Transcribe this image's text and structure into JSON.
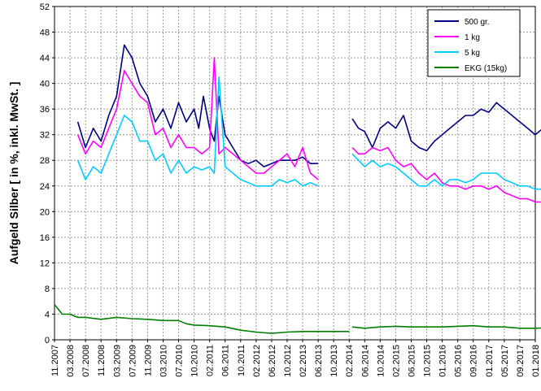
{
  "chart_data": {
    "type": "line",
    "ylabel": "Aufgeld Silber [ in %, inkl. MwSt. ]",
    "xlabel": "",
    "ylim": [
      0,
      52
    ],
    "y_ticks": [
      0,
      4,
      8,
      12,
      16,
      20,
      24,
      28,
      32,
      36,
      40,
      44,
      48,
      52
    ],
    "x_ticks": [
      "11.2007",
      "03.2008",
      "07.2008",
      "11.2008",
      "03.2009",
      "07.2009",
      "11.2009",
      "03.2010",
      "07.2010",
      "10.2010",
      "02.2011",
      "06.2011",
      "10.2011",
      "02.2012",
      "06.2012",
      "10.2012",
      "02.2013",
      "06.2013",
      "10.2013",
      "02.2014",
      "06.2014",
      "10.2014",
      "02.2015",
      "06.2015",
      "10.2015",
      "01.2016",
      "05.2016",
      "09.2016",
      "01.2017",
      "05.2017",
      "09.2017",
      "01.2018"
    ],
    "grid": true,
    "legend_position": "top-right",
    "series": [
      {
        "name": "500 gr.",
        "color": "#000080",
        "segments": [
          [
            [
              1.5,
              34
            ],
            [
              2,
              30
            ],
            [
              2.5,
              33
            ],
            [
              3,
              31
            ],
            [
              3.5,
              35
            ],
            [
              4,
              38
            ],
            [
              4.5,
              46
            ],
            [
              5,
              44
            ],
            [
              5.5,
              40
            ],
            [
              6,
              38
            ],
            [
              6.5,
              34
            ],
            [
              7,
              36
            ],
            [
              7.5,
              33
            ],
            [
              8,
              37
            ],
            [
              8.5,
              34
            ],
            [
              9,
              36
            ],
            [
              9.3,
              33
            ],
            [
              9.6,
              38
            ],
            [
              10,
              33
            ],
            [
              10.3,
              31
            ],
            [
              10.6,
              38
            ],
            [
              11,
              32
            ],
            [
              11.5,
              30
            ],
            [
              12,
              28
            ],
            [
              12.5,
              27.5
            ],
            [
              13,
              28
            ],
            [
              13.5,
              27
            ],
            [
              14,
              27.5
            ],
            [
              14.5,
              28
            ],
            [
              15,
              28
            ],
            [
              15.5,
              28
            ],
            [
              16,
              28.5
            ],
            [
              16.5,
              27.5
            ],
            [
              17,
              27.5
            ]
          ],
          [
            [
              19.2,
              34.5
            ],
            [
              19.6,
              33
            ],
            [
              20,
              32.5
            ],
            [
              20.5,
              30
            ],
            [
              21,
              33
            ],
            [
              21.5,
              34
            ],
            [
              22,
              33
            ],
            [
              22.5,
              35
            ],
            [
              23,
              31
            ],
            [
              23.5,
              30
            ],
            [
              24,
              29.5
            ],
            [
              24.5,
              31
            ],
            [
              25,
              32
            ],
            [
              25.5,
              33
            ],
            [
              26,
              34
            ],
            [
              26.5,
              35
            ],
            [
              27,
              35
            ],
            [
              27.5,
              36
            ],
            [
              28,
              35.5
            ],
            [
              28.5,
              37
            ],
            [
              29,
              36
            ],
            [
              29.5,
              35
            ],
            [
              30,
              34
            ],
            [
              30.5,
              33
            ],
            [
              31,
              32
            ],
            [
              31.5,
              33
            ],
            [
              32,
              33
            ],
            [
              32.5,
              32
            ],
            [
              33,
              33
            ],
            [
              33.5,
              32
            ],
            [
              34,
              33.5
            ]
          ]
        ]
      },
      {
        "name": "1 kg",
        "color": "#ff00ff",
        "segments": [
          [
            [
              1.5,
              32
            ],
            [
              2,
              29
            ],
            [
              2.5,
              31
            ],
            [
              3,
              30
            ],
            [
              3.5,
              33
            ],
            [
              4,
              36
            ],
            [
              4.5,
              42
            ],
            [
              5,
              40
            ],
            [
              5.5,
              38
            ],
            [
              6,
              37
            ],
            [
              6.5,
              32
            ],
            [
              7,
              33
            ],
            [
              7.5,
              30
            ],
            [
              8,
              32
            ],
            [
              8.5,
              30
            ],
            [
              9,
              30
            ],
            [
              9.5,
              29
            ],
            [
              10,
              30
            ],
            [
              10.3,
              44
            ],
            [
              10.6,
              29
            ],
            [
              11,
              30
            ],
            [
              11.5,
              29
            ],
            [
              12,
              28
            ],
            [
              12.5,
              27
            ],
            [
              13,
              26
            ],
            [
              13.5,
              26
            ],
            [
              14,
              27
            ],
            [
              14.5,
              28
            ],
            [
              15,
              29
            ],
            [
              15.5,
              27
            ],
            [
              16,
              30
            ],
            [
              16.5,
              26
            ],
            [
              17,
              25
            ]
          ],
          [
            [
              19.2,
              30
            ],
            [
              19.6,
              29
            ],
            [
              20,
              29
            ],
            [
              20.5,
              30
            ],
            [
              21,
              29.5
            ],
            [
              21.5,
              30
            ],
            [
              22,
              28
            ],
            [
              22.5,
              27
            ],
            [
              23,
              27.5
            ],
            [
              23.5,
              26
            ],
            [
              24,
              25
            ],
            [
              24.5,
              26
            ],
            [
              25,
              24.5
            ],
            [
              25.5,
              24
            ],
            [
              26,
              24
            ],
            [
              26.5,
              23.5
            ],
            [
              27,
              24
            ],
            [
              27.5,
              24
            ],
            [
              28,
              23.5
            ],
            [
              28.5,
              24
            ],
            [
              29,
              23
            ],
            [
              29.5,
              22.5
            ],
            [
              30,
              22
            ],
            [
              30.5,
              22
            ],
            [
              31,
              21.5
            ],
            [
              31.5,
              21.5
            ],
            [
              32,
              21
            ],
            [
              32.5,
              21.5
            ],
            [
              33,
              21.5
            ],
            [
              33.5,
              21
            ],
            [
              34,
              21.5
            ]
          ]
        ]
      },
      {
        "name": "5 kg",
        "color": "#00ccff",
        "segments": [
          [
            [
              1.5,
              28
            ],
            [
              2,
              25
            ],
            [
              2.5,
              27
            ],
            [
              3,
              26
            ],
            [
              3.5,
              29
            ],
            [
              4,
              32
            ],
            [
              4.5,
              35
            ],
            [
              5,
              34
            ],
            [
              5.5,
              31
            ],
            [
              6,
              31
            ],
            [
              6.5,
              28
            ],
            [
              7,
              29
            ],
            [
              7.5,
              26
            ],
            [
              8,
              28
            ],
            [
              8.5,
              26
            ],
            [
              9,
              27
            ],
            [
              9.5,
              26.5
            ],
            [
              10,
              27
            ],
            [
              10.3,
              26
            ],
            [
              10.6,
              41
            ],
            [
              11,
              27
            ],
            [
              11.5,
              26
            ],
            [
              12,
              25
            ],
            [
              12.5,
              24.5
            ],
            [
              13,
              24
            ],
            [
              13.5,
              24
            ],
            [
              14,
              24
            ],
            [
              14.5,
              25
            ],
            [
              15,
              24.5
            ],
            [
              15.5,
              25
            ],
            [
              16,
              24
            ],
            [
              16.5,
              24.5
            ],
            [
              17,
              24
            ]
          ],
          [
            [
              19.2,
              29
            ],
            [
              19.6,
              28
            ],
            [
              20,
              27
            ],
            [
              20.5,
              28
            ],
            [
              21,
              27
            ],
            [
              21.5,
              27.5
            ],
            [
              22,
              27
            ],
            [
              22.5,
              26
            ],
            [
              23,
              25
            ],
            [
              23.5,
              24
            ],
            [
              24,
              24
            ],
            [
              24.5,
              25
            ],
            [
              25,
              24
            ],
            [
              25.5,
              25
            ],
            [
              26,
              25
            ],
            [
              26.5,
              24.5
            ],
            [
              27,
              25
            ],
            [
              27.5,
              26
            ],
            [
              28,
              26
            ],
            [
              28.5,
              26
            ],
            [
              29,
              25
            ],
            [
              29.5,
              24.5
            ],
            [
              30,
              24
            ],
            [
              30.5,
              24
            ],
            [
              31,
              23.5
            ],
            [
              31.5,
              23.5
            ],
            [
              32,
              23.5
            ],
            [
              32.5,
              23
            ],
            [
              33,
              23
            ],
            [
              33.5,
              23
            ],
            [
              34,
              23.5
            ]
          ]
        ]
      },
      {
        "name": "EKG (15kg)",
        "color": "#008000",
        "segments": [
          [
            [
              0,
              5.5
            ],
            [
              0.5,
              4
            ],
            [
              1,
              4
            ],
            [
              1.5,
              3.5
            ],
            [
              2,
              3.5
            ],
            [
              3,
              3.2
            ],
            [
              4,
              3.5
            ],
            [
              5,
              3.3
            ],
            [
              6,
              3.2
            ],
            [
              7,
              3
            ],
            [
              8,
              3
            ],
            [
              8.5,
              2.5
            ],
            [
              9,
              2.3
            ],
            [
              10,
              2.2
            ],
            [
              11,
              2
            ],
            [
              12,
              1.5
            ],
            [
              13,
              1.2
            ],
            [
              14,
              1
            ],
            [
              15,
              1.2
            ],
            [
              16,
              1.3
            ],
            [
              17,
              1.3
            ],
            [
              18,
              1.3
            ],
            [
              19,
              1.3
            ]
          ],
          [
            [
              19.2,
              2
            ],
            [
              20,
              1.8
            ],
            [
              21,
              2
            ],
            [
              22,
              2.1
            ],
            [
              23,
              2
            ],
            [
              24,
              2
            ],
            [
              25,
              2
            ],
            [
              26,
              2.1
            ],
            [
              27,
              2.2
            ],
            [
              28,
              2
            ],
            [
              29,
              2
            ],
            [
              30,
              1.8
            ],
            [
              31,
              1.8
            ],
            [
              32,
              1.9
            ],
            [
              33,
              2
            ],
            [
              34,
              2
            ]
          ]
        ]
      }
    ]
  }
}
